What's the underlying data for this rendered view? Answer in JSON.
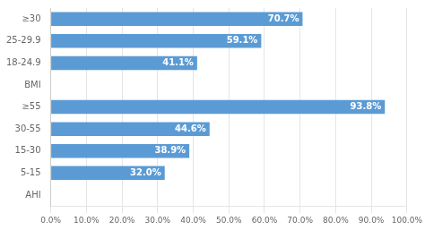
{
  "chart_data": {
    "type": "bar",
    "orientation": "horizontal",
    "categories": [
      "≥30",
      "25-29.9",
      "18-24.9",
      "BMI",
      "≥55",
      "30-55",
      "15-30",
      "5-15",
      "AHI"
    ],
    "values": [
      70.7,
      59.1,
      41.1,
      null,
      93.8,
      44.6,
      38.9,
      32.0,
      null
    ],
    "value_labels": [
      "70.7%",
      "59.1%",
      "41.1%",
      null,
      "93.8%",
      "44.6%",
      "38.9%",
      "32.0%",
      null
    ],
    "color": "#5b9bd5",
    "xlim": [
      0,
      100
    ],
    "xticks": [
      {
        "value": 0,
        "label": "0.0%"
      },
      {
        "value": 10,
        "label": "10.0%"
      },
      {
        "value": 20,
        "label": "20.0%"
      },
      {
        "value": 30,
        "label": "30.0%"
      },
      {
        "value": 40,
        "label": "40.0%"
      },
      {
        "value": 50,
        "label": "50.0%"
      },
      {
        "value": 60,
        "label": "60.0%"
      },
      {
        "value": 70,
        "label": "70.0%"
      },
      {
        "value": 80,
        "label": "80.0%"
      },
      {
        "value": 90,
        "label": "90.0%"
      },
      {
        "value": 100,
        "label": "100.0%"
      }
    ],
    "grid": true,
    "data_labels": true
  }
}
